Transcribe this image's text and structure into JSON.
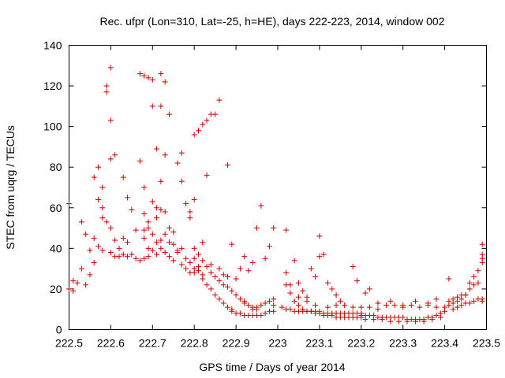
{
  "chart_data": {
    "type": "scatter",
    "title": "Rec. ufpr (Lon=310, Lat=-25, h=HE), days 222-223, 2014, window 002",
    "xlabel": "GPS time / Days of year 2014",
    "ylabel": "STEC from uqrg / TECUs",
    "xlim": [
      222.5,
      223.5
    ],
    "ylim": [
      0,
      140
    ],
    "xticks": [
      "222.5",
      "222.6",
      "222.7",
      "222.8",
      "222.9",
      "223",
      "223.1",
      "223.2",
      "223.3",
      "223.4",
      "223.5"
    ],
    "yticks": [
      "0",
      "20",
      "40",
      "60",
      "80",
      "100",
      "120",
      "140"
    ],
    "grid": false,
    "marker": "+",
    "color": "#cc0000",
    "series": [
      {
        "points": [
          [
            222.5,
            62
          ],
          [
            222.5,
            20
          ],
          [
            222.51,
            19
          ],
          [
            222.51,
            24
          ],
          [
            222.52,
            23
          ],
          [
            222.53,
            30
          ],
          [
            222.53,
            53
          ],
          [
            222.54,
            47
          ],
          [
            222.54,
            22
          ],
          [
            222.55,
            39
          ],
          [
            222.55,
            27
          ],
          [
            222.56,
            45
          ],
          [
            222.56,
            33
          ],
          [
            222.57,
            41
          ],
          [
            222.58,
            60
          ],
          [
            222.58,
            55
          ],
          [
            222.58,
            39
          ],
          [
            222.56,
            75
          ],
          [
            222.57,
            80
          ],
          [
            222.57,
            64
          ],
          [
            222.58,
            70
          ],
          [
            222.59,
            120
          ],
          [
            222.59,
            117
          ],
          [
            222.6,
            129
          ],
          [
            222.6,
            103
          ],
          [
            222.6,
            84
          ],
          [
            222.61,
            86
          ],
          [
            222.59,
            53
          ],
          [
            222.6,
            50
          ],
          [
            222.61,
            44
          ],
          [
            222.62,
            40
          ],
          [
            222.6,
            38
          ],
          [
            222.61,
            36
          ],
          [
            222.62,
            36
          ],
          [
            222.63,
            37
          ],
          [
            222.64,
            36
          ],
          [
            222.65,
            37
          ],
          [
            222.66,
            35
          ],
          [
            222.67,
            34
          ],
          [
            222.68,
            35
          ],
          [
            222.69,
            36
          ],
          [
            222.63,
            75
          ],
          [
            222.63,
            45
          ],
          [
            222.64,
            43
          ],
          [
            222.64,
            65
          ],
          [
            222.65,
            59
          ],
          [
            222.66,
            49
          ],
          [
            222.67,
            83
          ],
          [
            222.67,
            126
          ],
          [
            222.68,
            125
          ],
          [
            222.69,
            124
          ],
          [
            222.7,
            123
          ],
          [
            222.7,
            110
          ],
          [
            222.71,
            89
          ],
          [
            222.72,
            126
          ],
          [
            222.72,
            110
          ],
          [
            222.73,
            122
          ],
          [
            222.74,
            106
          ],
          [
            222.68,
            70
          ],
          [
            222.68,
            57
          ],
          [
            222.69,
            53
          ],
          [
            222.7,
            63
          ],
          [
            222.71,
            60
          ],
          [
            222.71,
            55
          ],
          [
            222.72,
            73
          ],
          [
            222.72,
            59
          ],
          [
            222.73,
            86
          ],
          [
            222.73,
            58
          ],
          [
            222.74,
            50
          ],
          [
            222.75,
            48
          ],
          [
            222.76,
            82
          ],
          [
            222.77,
            87
          ],
          [
            222.77,
            73
          ],
          [
            222.78,
            62
          ],
          [
            222.79,
            55
          ],
          [
            222.79,
            58
          ],
          [
            222.68,
            45
          ],
          [
            222.69,
            40
          ],
          [
            222.7,
            39
          ],
          [
            222.71,
            37
          ],
          [
            222.72,
            40
          ],
          [
            222.73,
            38
          ],
          [
            222.74,
            36
          ],
          [
            222.75,
            34
          ],
          [
            222.76,
            38
          ],
          [
            222.77,
            40
          ],
          [
            222.78,
            35
          ],
          [
            222.79,
            33
          ],
          [
            222.8,
            30
          ],
          [
            222.68,
            49
          ],
          [
            222.69,
            50
          ],
          [
            222.7,
            47
          ],
          [
            222.71,
            43
          ],
          [
            222.72,
            44
          ],
          [
            222.73,
            47
          ],
          [
            222.74,
            43
          ],
          [
            222.75,
            42
          ],
          [
            222.76,
            39
          ],
          [
            222.77,
            32
          ],
          [
            222.78,
            30
          ],
          [
            222.79,
            28
          ],
          [
            222.8,
            28
          ],
          [
            222.81,
            31
          ],
          [
            222.82,
            27
          ],
          [
            222.8,
            96
          ],
          [
            222.81,
            98
          ],
          [
            222.82,
            101
          ],
          [
            222.83,
            103
          ],
          [
            222.84,
            106
          ],
          [
            222.85,
            106
          ],
          [
            222.86,
            113
          ],
          [
            222.88,
            81
          ],
          [
            222.83,
            76
          ],
          [
            222.8,
            64
          ],
          [
            222.8,
            35
          ],
          [
            222.81,
            29
          ],
          [
            222.82,
            25
          ],
          [
            222.83,
            22
          ],
          [
            222.84,
            20
          ],
          [
            222.85,
            17
          ],
          [
            222.86,
            15
          ],
          [
            222.87,
            13
          ],
          [
            222.88,
            11
          ],
          [
            222.89,
            10
          ],
          [
            222.8,
            40
          ],
          [
            222.81,
            37
          ],
          [
            222.82,
            34
          ],
          [
            222.83,
            31
          ],
          [
            222.84,
            28
          ],
          [
            222.85,
            26
          ],
          [
            222.86,
            24
          ],
          [
            222.87,
            22
          ],
          [
            222.88,
            21
          ],
          [
            222.89,
            19
          ],
          [
            222.9,
            17
          ],
          [
            222.91,
            15
          ],
          [
            222.92,
            13
          ],
          [
            222.93,
            12
          ],
          [
            222.94,
            11
          ],
          [
            222.95,
            10
          ],
          [
            222.82,
            43
          ],
          [
            222.84,
            32
          ],
          [
            222.86,
            30
          ],
          [
            222.87,
            27
          ],
          [
            222.88,
            26
          ],
          [
            222.89,
            42
          ],
          [
            222.9,
            25
          ],
          [
            222.91,
            30
          ],
          [
            222.92,
            36
          ],
          [
            222.93,
            29
          ],
          [
            222.94,
            33
          ],
          [
            222.95,
            50
          ],
          [
            222.96,
            61
          ],
          [
            222.97,
            35
          ],
          [
            222.98,
            41
          ],
          [
            222.99,
            50
          ],
          [
            223.02,
            49
          ],
          [
            222.89,
            9
          ],
          [
            222.9,
            8
          ],
          [
            222.91,
            8
          ],
          [
            222.92,
            7
          ],
          [
            222.93,
            7
          ],
          [
            222.94,
            7
          ],
          [
            222.95,
            7
          ],
          [
            222.96,
            7
          ],
          [
            222.97,
            8
          ],
          [
            222.98,
            9
          ],
          [
            222.99,
            9
          ],
          [
            222.92,
            14
          ],
          [
            222.93,
            12
          ],
          [
            222.94,
            10
          ],
          [
            222.95,
            11
          ],
          [
            222.96,
            12
          ],
          [
            222.97,
            13
          ],
          [
            222.98,
            14
          ],
          [
            222.99,
            15
          ],
          [
            222.99,
            12
          ],
          [
            223.02,
            28
          ],
          [
            223.03,
            22
          ],
          [
            223.04,
            34
          ],
          [
            223.05,
            23
          ],
          [
            223.06,
            19
          ],
          [
            223.07,
            16
          ],
          [
            223.08,
            30
          ],
          [
            223.09,
            26
          ],
          [
            223.1,
            46
          ],
          [
            223.1,
            36
          ],
          [
            223.11,
            37
          ],
          [
            223.12,
            23
          ],
          [
            223.13,
            20
          ],
          [
            223.14,
            17
          ],
          [
            223.15,
            14
          ],
          [
            223.18,
            31
          ],
          [
            223.19,
            24
          ],
          [
            223.21,
            18
          ],
          [
            223.22,
            20
          ],
          [
            223.02,
            22
          ],
          [
            223.03,
            18
          ],
          [
            223.04,
            14
          ],
          [
            223.05,
            12
          ],
          [
            223.06,
            10
          ],
          [
            223.07,
            9
          ],
          [
            223.08,
            9
          ],
          [
            223.09,
            8
          ],
          [
            223.1,
            8
          ],
          [
            223.11,
            7
          ],
          [
            223.12,
            7
          ],
          [
            223.13,
            7
          ],
          [
            223.14,
            6
          ],
          [
            223.15,
            6
          ],
          [
            223.16,
            6
          ],
          [
            223.17,
            6
          ],
          [
            223.18,
            6
          ],
          [
            223.19,
            6
          ],
          [
            223.2,
            6
          ],
          [
            223.01,
            11
          ],
          [
            223.02,
            10
          ],
          [
            223.03,
            10
          ],
          [
            223.04,
            9
          ],
          [
            223.05,
            9
          ],
          [
            223.06,
            9
          ],
          [
            223.07,
            9
          ],
          [
            223.08,
            9
          ],
          [
            223.09,
            9
          ],
          [
            223.1,
            9
          ],
          [
            223.11,
            8
          ],
          [
            223.12,
            8
          ],
          [
            223.13,
            8
          ],
          [
            223.14,
            8
          ],
          [
            223.15,
            8
          ],
          [
            223.16,
            8
          ],
          [
            223.17,
            8
          ],
          [
            223.18,
            8
          ],
          [
            223.19,
            8
          ],
          [
            223.2,
            8
          ],
          [
            223.05,
            16
          ],
          [
            223.07,
            14
          ],
          [
            223.09,
            12
          ],
          [
            223.12,
            11
          ],
          [
            223.14,
            12
          ],
          [
            223.16,
            12
          ],
          [
            223.18,
            11
          ],
          [
            223.2,
            11
          ],
          [
            223.22,
            11
          ],
          [
            223.24,
            10
          ],
          [
            223.26,
            12
          ],
          [
            223.28,
            12
          ],
          [
            223.3,
            11
          ],
          [
            223.32,
            12
          ],
          [
            223.34,
            11
          ],
          [
            223.36,
            12
          ],
          [
            223.38,
            11
          ],
          [
            223.2,
            7
          ],
          [
            223.21,
            7
          ],
          [
            223.22,
            7
          ],
          [
            223.23,
            7
          ],
          [
            223.24,
            6
          ],
          [
            223.25,
            6
          ],
          [
            223.26,
            6
          ],
          [
            223.27,
            6
          ],
          [
            223.28,
            6
          ],
          [
            223.29,
            6
          ],
          [
            223.3,
            6
          ],
          [
            223.31,
            5
          ],
          [
            223.32,
            5
          ],
          [
            223.33,
            5
          ],
          [
            223.34,
            5
          ],
          [
            223.35,
            5
          ],
          [
            223.36,
            6
          ],
          [
            223.37,
            6
          ],
          [
            223.38,
            7
          ],
          [
            223.39,
            8
          ],
          [
            223.4,
            9
          ],
          [
            223.21,
            5
          ],
          [
            223.23,
            5
          ],
          [
            223.25,
            5
          ],
          [
            223.27,
            4
          ],
          [
            223.29,
            4
          ],
          [
            223.31,
            4
          ],
          [
            223.33,
            4
          ],
          [
            223.35,
            4
          ],
          [
            223.37,
            5
          ],
          [
            223.39,
            6
          ],
          [
            223.24,
            13
          ],
          [
            223.27,
            14
          ],
          [
            223.3,
            12
          ],
          [
            223.33,
            14
          ],
          [
            223.36,
            13
          ],
          [
            223.38,
            15
          ],
          [
            223.41,
            25
          ],
          [
            223.4,
            11
          ],
          [
            223.41,
            12
          ],
          [
            223.42,
            13
          ],
          [
            223.43,
            14
          ],
          [
            223.44,
            15
          ],
          [
            223.45,
            17
          ],
          [
            223.46,
            23
          ],
          [
            223.47,
            26
          ],
          [
            223.48,
            29
          ],
          [
            223.49,
            33
          ],
          [
            223.49,
            35
          ],
          [
            223.49,
            42
          ],
          [
            223.49,
            37
          ],
          [
            223.41,
            14
          ],
          [
            223.42,
            15
          ],
          [
            223.43,
            16
          ],
          [
            223.44,
            17
          ],
          [
            223.45,
            17
          ],
          [
            223.46,
            20
          ],
          [
            223.47,
            22
          ],
          [
            223.48,
            23
          ],
          [
            223.42,
            10
          ],
          [
            223.43,
            11
          ],
          [
            223.44,
            12
          ],
          [
            223.45,
            13
          ],
          [
            223.46,
            13
          ],
          [
            223.47,
            14
          ],
          [
            223.48,
            15
          ],
          [
            223.49,
            15
          ],
          [
            223.49,
            14
          ]
        ]
      }
    ]
  }
}
